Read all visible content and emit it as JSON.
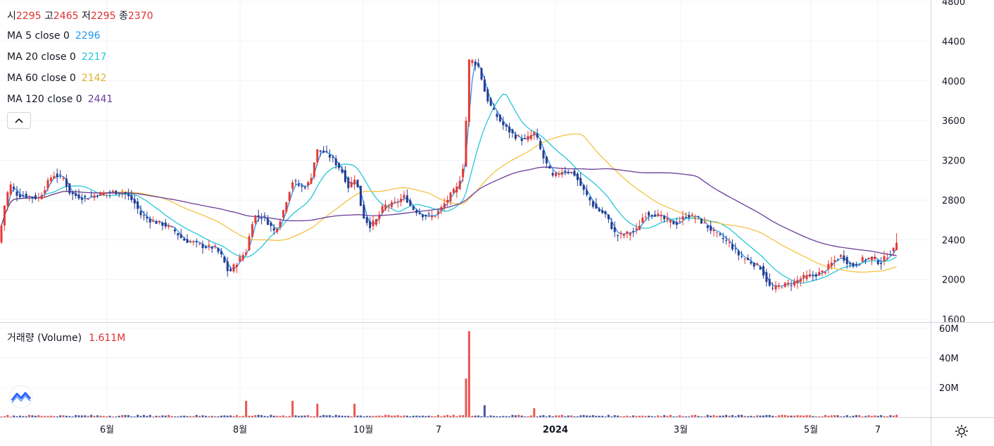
{
  "legend": {
    "open_label": "시",
    "open": "2295",
    "high_label": "고",
    "high": "2465",
    "low_label": "저",
    "low": "2295",
    "close_label": "종",
    "close": "2370",
    "ma": [
      {
        "label": "MA 5 close 0",
        "value": "2296",
        "color": "#2196f3"
      },
      {
        "label": "MA 20 close 0",
        "value": "2217",
        "color": "#26c6da"
      },
      {
        "label": "MA 60 close 0",
        "value": "2142",
        "color": "#f5c242"
      },
      {
        "label": "MA 120 close 0",
        "value": "2441",
        "color": "#6a3d9a"
      }
    ]
  },
  "volume_legend": {
    "label": "거래량 (Volume)",
    "value": "1.611M"
  },
  "icons": {
    "collapse": "chevron-up-icon",
    "logo": "tradingview-logo-icon",
    "settings": "gear-icon"
  },
  "colors": {
    "up": "#e53935",
    "down": "#283c8f",
    "grid": "#f0f3fa",
    "axis_text": "#131722"
  },
  "chart_data": {
    "type": "candlestick",
    "price_axis": {
      "ticks": [
        1600,
        2000,
        2400,
        2800,
        3200,
        3600,
        4000,
        4400,
        4800
      ],
      "ylim": [
        1600,
        4800
      ]
    },
    "volume_axis": {
      "tick_labels": [
        "20M",
        "40M",
        "60M"
      ],
      "ticks": [
        20,
        40,
        60
      ],
      "unit": "M"
    },
    "x_tick_labels": [
      "6월",
      "8월",
      "10월",
      "7",
      "2024",
      "3월",
      "5월",
      "7"
    ],
    "grid": true,
    "close_series": [
      [
        0,
        2450
      ],
      [
        8,
        2820
      ],
      [
        15,
        2950
      ],
      [
        25,
        2850
      ],
      [
        40,
        2840
      ],
      [
        55,
        2820
      ],
      [
        75,
        3060
      ],
      [
        90,
        3020
      ],
      [
        100,
        2860
      ],
      [
        120,
        2820
      ],
      [
        140,
        2860
      ],
      [
        160,
        2880
      ],
      [
        175,
        2880
      ],
      [
        190,
        2780
      ],
      [
        200,
        2650
      ],
      [
        215,
        2590
      ],
      [
        230,
        2560
      ],
      [
        245,
        2510
      ],
      [
        260,
        2400
      ],
      [
        275,
        2370
      ],
      [
        290,
        2330
      ],
      [
        305,
        2320
      ],
      [
        315,
        2230
      ],
      [
        325,
        2060
      ],
      [
        335,
        2160
      ],
      [
        350,
        2290
      ],
      [
        360,
        2640
      ],
      [
        375,
        2630
      ],
      [
        390,
        2480
      ],
      [
        400,
        2640
      ],
      [
        415,
        2990
      ],
      [
        430,
        2920
      ],
      [
        440,
        2980
      ],
      [
        450,
        3300
      ],
      [
        460,
        3280
      ],
      [
        470,
        3230
      ],
      [
        485,
        3100
      ],
      [
        495,
        2930
      ],
      [
        505,
        3040
      ],
      [
        515,
        2650
      ],
      [
        525,
        2540
      ],
      [
        535,
        2600
      ],
      [
        545,
        2740
      ],
      [
        560,
        2760
      ],
      [
        575,
        2840
      ],
      [
        585,
        2720
      ],
      [
        600,
        2650
      ],
      [
        615,
        2630
      ],
      [
        625,
        2700
      ],
      [
        640,
        2850
      ],
      [
        650,
        2930
      ],
      [
        660,
        3200
      ],
      [
        665,
        4200
      ],
      [
        672,
        4200
      ],
      [
        680,
        4140
      ],
      [
        690,
        3850
      ],
      [
        700,
        3700
      ],
      [
        715,
        3550
      ],
      [
        730,
        3450
      ],
      [
        745,
        3400
      ],
      [
        760,
        3480
      ],
      [
        770,
        3250
      ],
      [
        785,
        3030
      ],
      [
        800,
        3100
      ],
      [
        815,
        3070
      ],
      [
        830,
        2880
      ],
      [
        845,
        2720
      ],
      [
        860,
        2650
      ],
      [
        875,
        2440
      ],
      [
        890,
        2460
      ],
      [
        905,
        2500
      ],
      [
        915,
        2660
      ],
      [
        930,
        2660
      ],
      [
        945,
        2600
      ],
      [
        960,
        2560
      ],
      [
        975,
        2650
      ],
      [
        990,
        2620
      ],
      [
        1005,
        2530
      ],
      [
        1020,
        2440
      ],
      [
        1035,
        2370
      ],
      [
        1050,
        2240
      ],
      [
        1065,
        2180
      ],
      [
        1080,
        2120
      ],
      [
        1095,
        1900
      ],
      [
        1110,
        1940
      ],
      [
        1125,
        1960
      ],
      [
        1140,
        2020
      ],
      [
        1155,
        2040
      ],
      [
        1170,
        2080
      ],
      [
        1185,
        2190
      ],
      [
        1195,
        2240
      ],
      [
        1210,
        2130
      ],
      [
        1225,
        2200
      ],
      [
        1240,
        2220
      ],
      [
        1250,
        2160
      ],
      [
        1260,
        2240
      ],
      [
        1270,
        2300
      ],
      [
        1275,
        2370
      ]
    ]
  }
}
